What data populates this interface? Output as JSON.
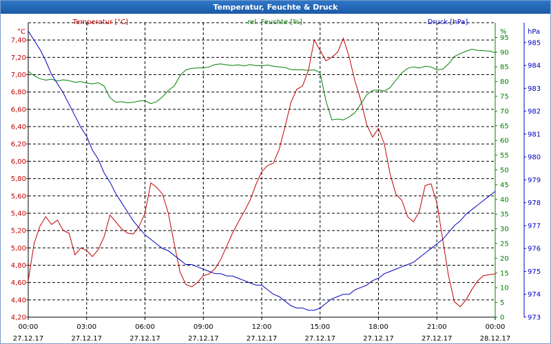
{
  "window": {
    "title": "Temperatur, Feuchte & Druck"
  },
  "chart_data": {
    "type": "line",
    "title": "Temperatur, Feuchte & Druck",
    "grid": true,
    "x_range_hours": [
      0,
      24
    ],
    "x_ticks": [
      {
        "hour": 0,
        "time": "00:00",
        "date": "27.12.17"
      },
      {
        "hour": 3,
        "time": "03:00",
        "date": "27.12.17"
      },
      {
        "hour": 6,
        "time": "06:00",
        "date": "27.12.17"
      },
      {
        "hour": 9,
        "time": "09:00",
        "date": "27.12.17"
      },
      {
        "hour": 12,
        "time": "12:00",
        "date": "27.12.17"
      },
      {
        "hour": 15,
        "time": "15:00",
        "date": "27.12.17"
      },
      {
        "hour": 18,
        "time": "18:00",
        "date": "27.12.17"
      },
      {
        "hour": 21,
        "time": "21:00",
        "date": "27.12.17"
      },
      {
        "hour": 24,
        "time": "00:00",
        "date": "28.12.17"
      }
    ],
    "axes": {
      "temperature": {
        "label": "Temperatur [°C]",
        "unit": "°C",
        "color": "#c00000",
        "ylim": [
          4.2,
          7.6
        ],
        "ticks": [
          "4,20",
          "4,40",
          "4,60",
          "4,80",
          "5,00",
          "5,20",
          "5,40",
          "5,60",
          "5,80",
          "6,00",
          "6,20",
          "6,40",
          "6,60",
          "6,80",
          "7,00",
          "7,20",
          "7,40"
        ]
      },
      "humidity": {
        "label": "rel. Feuchte [%]",
        "unit": "%",
        "color": "#008000",
        "ylim": [
          0,
          100
        ],
        "ticks": [
          "0",
          "5",
          "10",
          "15",
          "20",
          "25",
          "30",
          "35",
          "40",
          "45",
          "50",
          "55",
          "60",
          "65",
          "70",
          "75",
          "80",
          "85",
          "90",
          "95"
        ]
      },
      "pressure": {
        "label": "Druck [hPa]",
        "unit": "hPa",
        "color": "#0000c0",
        "ylim": [
          973,
          985.867
        ],
        "ticks": [
          "973",
          "974",
          "975",
          "976",
          "977",
          "978",
          "979",
          "980",
          "981",
          "982",
          "983",
          "984",
          "985"
        ]
      }
    },
    "series": [
      {
        "name": "Temperatur [°C]",
        "axis": "temperature",
        "color": "#c00000",
        "x": [
          0.0,
          0.3,
          0.6,
          0.9,
          1.2,
          1.5,
          1.8,
          2.1,
          2.4,
          2.7,
          3.0,
          3.3,
          3.6,
          3.9,
          4.2,
          4.5,
          4.8,
          5.1,
          5.4,
          5.7,
          6.0,
          6.3,
          6.6,
          6.9,
          7.2,
          7.5,
          7.8,
          8.1,
          8.4,
          8.7,
          9.0,
          9.3,
          9.6,
          9.9,
          10.2,
          10.5,
          10.8,
          11.1,
          11.4,
          11.7,
          12.0,
          12.3,
          12.6,
          12.9,
          13.2,
          13.5,
          13.8,
          14.1,
          14.4,
          14.7,
          15.0,
          15.3,
          15.6,
          15.9,
          16.2,
          16.5,
          16.8,
          17.1,
          17.4,
          17.7,
          18.0,
          18.3,
          18.6,
          18.9,
          19.2,
          19.5,
          19.8,
          20.1,
          20.4,
          20.7,
          21.0,
          21.3,
          21.6,
          21.9,
          22.2,
          22.5,
          22.8,
          23.1,
          23.4,
          23.7,
          24.0
        ],
        "values": [
          4.62,
          5.05,
          5.25,
          5.36,
          5.27,
          5.32,
          5.2,
          5.17,
          4.92,
          5.0,
          4.97,
          4.9,
          4.98,
          5.13,
          5.38,
          5.3,
          5.22,
          5.17,
          5.16,
          5.25,
          5.4,
          5.75,
          5.7,
          5.62,
          5.4,
          5.05,
          4.72,
          4.58,
          4.55,
          4.6,
          4.68,
          4.7,
          4.76,
          4.87,
          5.02,
          5.17,
          5.3,
          5.42,
          5.55,
          5.73,
          5.88,
          5.95,
          5.98,
          6.14,
          6.4,
          6.68,
          6.83,
          6.87,
          7.05,
          7.4,
          7.28,
          7.16,
          7.2,
          7.26,
          7.42,
          7.2,
          6.92,
          6.7,
          6.42,
          6.28,
          6.38,
          6.2,
          5.85,
          5.62,
          5.55,
          5.36,
          5.3,
          5.42,
          5.72,
          5.74,
          5.52,
          5.1,
          4.68,
          4.38,
          4.32,
          4.4,
          4.52,
          4.62,
          4.68,
          4.69,
          4.7
        ]
      },
      {
        "name": "rel. Feuchte [%]",
        "axis": "humidity",
        "color": "#008000",
        "x": [
          0.0,
          0.3,
          0.6,
          0.9,
          1.2,
          1.5,
          1.8,
          2.1,
          2.4,
          2.7,
          3.0,
          3.3,
          3.6,
          3.9,
          4.2,
          4.5,
          4.8,
          5.1,
          5.4,
          5.7,
          6.0,
          6.3,
          6.6,
          6.9,
          7.2,
          7.5,
          7.8,
          8.1,
          8.4,
          8.7,
          9.0,
          9.3,
          9.6,
          9.9,
          10.2,
          10.5,
          10.8,
          11.1,
          11.4,
          11.7,
          12.0,
          12.3,
          12.6,
          12.9,
          13.2,
          13.5,
          13.8,
          14.1,
          14.4,
          14.7,
          15.0,
          15.3,
          15.6,
          15.9,
          16.2,
          16.5,
          16.8,
          17.1,
          17.4,
          17.7,
          18.0,
          18.3,
          18.6,
          18.9,
          19.2,
          19.5,
          19.8,
          20.1,
          20.4,
          20.7,
          21.0,
          21.3,
          21.6,
          21.9,
          22.2,
          22.5,
          22.8,
          23.1,
          23.4,
          23.7,
          24.0
        ],
        "values": [
          83.5,
          82.0,
          81.0,
          80.5,
          80.8,
          80.2,
          80.6,
          80.3,
          79.8,
          80.0,
          79.5,
          79.2,
          79.6,
          78.5,
          74.5,
          73.0,
          73.2,
          72.8,
          73.0,
          73.4,
          73.5,
          72.5,
          73.2,
          74.8,
          77.0,
          78.5,
          82.0,
          84.0,
          84.5,
          84.6,
          84.7,
          85.0,
          85.8,
          86.0,
          85.7,
          85.5,
          85.7,
          85.3,
          85.8,
          85.4,
          85.4,
          85.6,
          85.2,
          85.0,
          84.8,
          84.1,
          84.0,
          84.0,
          83.8,
          84.0,
          83.0,
          73.5,
          67.0,
          67.3,
          67.0,
          68.0,
          69.5,
          72.5,
          75.5,
          77.0,
          77.2,
          76.8,
          78.0,
          80.5,
          83.0,
          84.5,
          85.0,
          84.6,
          85.2,
          85.0,
          84.0,
          84.2,
          86.0,
          88.5,
          89.5,
          90.3,
          91.0,
          90.6,
          90.5,
          90.4,
          89.8
        ]
      },
      {
        "name": "Druck [hPa]",
        "axis": "pressure",
        "color": "#0000c0",
        "x": [
          0.0,
          0.3,
          0.6,
          0.9,
          1.2,
          1.5,
          1.8,
          2.1,
          2.4,
          2.7,
          3.0,
          3.3,
          3.6,
          3.9,
          4.2,
          4.5,
          4.8,
          5.1,
          5.4,
          5.7,
          6.0,
          6.3,
          6.6,
          6.9,
          7.2,
          7.5,
          7.8,
          8.1,
          8.4,
          8.7,
          9.0,
          9.3,
          9.6,
          9.9,
          10.2,
          10.5,
          10.8,
          11.1,
          11.4,
          11.7,
          12.0,
          12.3,
          12.6,
          12.9,
          13.2,
          13.5,
          13.8,
          14.1,
          14.4,
          14.7,
          15.0,
          15.3,
          15.6,
          15.9,
          16.2,
          16.5,
          16.8,
          17.1,
          17.4,
          17.7,
          18.0,
          18.3,
          18.6,
          18.9,
          19.2,
          19.5,
          19.8,
          20.1,
          20.4,
          20.7,
          21.0,
          21.3,
          21.6,
          21.9,
          22.2,
          22.5,
          22.8,
          23.1,
          23.4,
          23.7,
          24.0
        ],
        "values": [
          985.5,
          985.1,
          984.7,
          984.2,
          983.6,
          983.2,
          982.8,
          982.3,
          981.8,
          981.3,
          980.9,
          980.3,
          979.9,
          979.3,
          978.9,
          978.4,
          978.0,
          977.6,
          977.2,
          976.9,
          976.6,
          976.4,
          976.2,
          976.0,
          975.9,
          975.7,
          975.5,
          975.3,
          975.3,
          975.2,
          975.1,
          975.0,
          974.9,
          974.9,
          974.8,
          974.8,
          974.7,
          974.6,
          974.5,
          974.4,
          974.4,
          974.2,
          974.0,
          973.9,
          973.7,
          973.5,
          973.4,
          973.4,
          973.3,
          973.3,
          973.4,
          973.6,
          973.8,
          973.9,
          974.0,
          974.0,
          974.2,
          974.3,
          974.4,
          974.6,
          974.7,
          974.9,
          975.0,
          975.1,
          975.2,
          975.3,
          975.4,
          975.6,
          975.8,
          976.0,
          976.2,
          976.4,
          976.7,
          977.0,
          977.2,
          977.5,
          977.7,
          977.9,
          978.1,
          978.3,
          978.5
        ]
      }
    ]
  }
}
